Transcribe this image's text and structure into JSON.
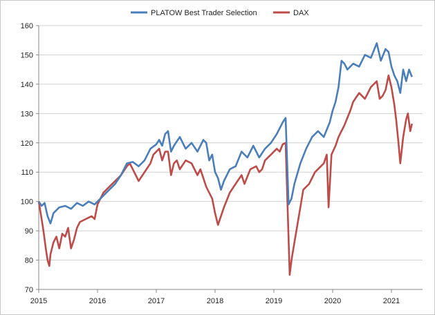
{
  "chart_data": {
    "type": "line",
    "title": "",
    "xlabel": "",
    "ylabel": "",
    "ylim": [
      70,
      160
    ],
    "xlim": [
      2015,
      2021.4
    ],
    "grid": true,
    "legend": "top",
    "y_ticks": [
      "70",
      "80",
      "90",
      "100",
      "110",
      "120",
      "130",
      "140",
      "150",
      "160"
    ],
    "x_ticks": [
      "2015",
      "2016",
      "2017",
      "2018",
      "2019",
      "2020",
      "2021"
    ],
    "series": [
      {
        "name": "PLATOW Best Trader Selection",
        "color": "#4a7ebb",
        "points": [
          [
            2015.0,
            100
          ],
          [
            2015.05,
            98.5
          ],
          [
            2015.1,
            99.5
          ],
          [
            2015.15,
            95
          ],
          [
            2015.2,
            92.5
          ],
          [
            2015.25,
            96
          ],
          [
            2015.35,
            98
          ],
          [
            2015.45,
            98.5
          ],
          [
            2015.55,
            97.5
          ],
          [
            2015.65,
            99.5
          ],
          [
            2015.75,
            98.5
          ],
          [
            2015.85,
            100
          ],
          [
            2015.95,
            99
          ],
          [
            2016.0,
            100
          ],
          [
            2016.1,
            102
          ],
          [
            2016.2,
            104
          ],
          [
            2016.3,
            106
          ],
          [
            2016.4,
            109
          ],
          [
            2016.5,
            113
          ],
          [
            2016.6,
            113.5
          ],
          [
            2016.7,
            112
          ],
          [
            2016.8,
            114
          ],
          [
            2016.9,
            118
          ],
          [
            2017.0,
            119.5
          ],
          [
            2017.05,
            121
          ],
          [
            2017.1,
            119
          ],
          [
            2017.15,
            123
          ],
          [
            2017.2,
            124
          ],
          [
            2017.25,
            117
          ],
          [
            2017.3,
            119
          ],
          [
            2017.4,
            122
          ],
          [
            2017.5,
            118
          ],
          [
            2017.6,
            120
          ],
          [
            2017.7,
            117
          ],
          [
            2017.8,
            121
          ],
          [
            2017.85,
            120
          ],
          [
            2017.9,
            114
          ],
          [
            2017.95,
            116
          ],
          [
            2018.0,
            110
          ],
          [
            2018.05,
            108
          ],
          [
            2018.1,
            104
          ],
          [
            2018.15,
            107
          ],
          [
            2018.25,
            111
          ],
          [
            2018.35,
            112
          ],
          [
            2018.45,
            117
          ],
          [
            2018.55,
            115
          ],
          [
            2018.65,
            119
          ],
          [
            2018.75,
            115
          ],
          [
            2018.85,
            118
          ],
          [
            2018.95,
            120
          ],
          [
            2019.05,
            123
          ],
          [
            2019.1,
            125
          ],
          [
            2019.15,
            127
          ],
          [
            2019.2,
            128.5
          ],
          [
            2019.25,
            99
          ],
          [
            2019.3,
            101
          ],
          [
            2019.35,
            106
          ],
          [
            2019.45,
            113
          ],
          [
            2019.55,
            118
          ],
          [
            2019.65,
            122
          ],
          [
            2019.75,
            124
          ],
          [
            2019.85,
            122
          ],
          [
            2019.95,
            127
          ],
          [
            2020.0,
            131
          ],
          [
            2020.05,
            134
          ],
          [
            2020.1,
            139
          ],
          [
            2020.15,
            148
          ],
          [
            2020.2,
            147
          ],
          [
            2020.25,
            145
          ],
          [
            2020.35,
            147
          ],
          [
            2020.45,
            146
          ],
          [
            2020.55,
            150
          ],
          [
            2020.65,
            149
          ],
          [
            2020.75,
            154
          ],
          [
            2020.82,
            148
          ],
          [
            2020.9,
            152
          ],
          [
            2020.95,
            151
          ],
          [
            2021.0,
            146
          ],
          [
            2021.05,
            143
          ],
          [
            2021.1,
            141
          ],
          [
            2021.15,
            137
          ],
          [
            2021.2,
            145
          ],
          [
            2021.25,
            141
          ],
          [
            2021.3,
            145
          ],
          [
            2021.35,
            142.5
          ]
        ]
      },
      {
        "name": "DAX",
        "color": "#be4b48",
        "points": [
          [
            2015.0,
            100
          ],
          [
            2015.05,
            94
          ],
          [
            2015.08,
            90
          ],
          [
            2015.12,
            84
          ],
          [
            2015.15,
            80
          ],
          [
            2015.18,
            78
          ],
          [
            2015.2,
            82
          ],
          [
            2015.25,
            86
          ],
          [
            2015.3,
            88
          ],
          [
            2015.35,
            84
          ],
          [
            2015.4,
            89
          ],
          [
            2015.45,
            88
          ],
          [
            2015.5,
            91
          ],
          [
            2015.55,
            84
          ],
          [
            2015.6,
            87
          ],
          [
            2015.65,
            91
          ],
          [
            2015.7,
            93
          ],
          [
            2015.8,
            94
          ],
          [
            2015.9,
            95
          ],
          [
            2015.95,
            94
          ],
          [
            2016.0,
            99
          ],
          [
            2016.1,
            103
          ],
          [
            2016.2,
            105
          ],
          [
            2016.3,
            107
          ],
          [
            2016.4,
            109
          ],
          [
            2016.5,
            112
          ],
          [
            2016.55,
            113
          ],
          [
            2016.6,
            111
          ],
          [
            2016.7,
            107
          ],
          [
            2016.8,
            110
          ],
          [
            2016.9,
            113
          ],
          [
            2016.95,
            116
          ],
          [
            2017.0,
            117
          ],
          [
            2017.05,
            118
          ],
          [
            2017.1,
            114
          ],
          [
            2017.15,
            117
          ],
          [
            2017.2,
            117
          ],
          [
            2017.25,
            109
          ],
          [
            2017.3,
            113
          ],
          [
            2017.35,
            114
          ],
          [
            2017.4,
            111
          ],
          [
            2017.5,
            114
          ],
          [
            2017.6,
            113
          ],
          [
            2017.7,
            109
          ],
          [
            2017.75,
            111
          ],
          [
            2017.8,
            108
          ],
          [
            2017.85,
            105
          ],
          [
            2017.9,
            103
          ],
          [
            2017.95,
            101
          ],
          [
            2018.0,
            96
          ],
          [
            2018.05,
            92
          ],
          [
            2018.1,
            95
          ],
          [
            2018.15,
            98
          ],
          [
            2018.25,
            103
          ],
          [
            2018.35,
            106
          ],
          [
            2018.45,
            109
          ],
          [
            2018.5,
            106
          ],
          [
            2018.6,
            111
          ],
          [
            2018.7,
            112
          ],
          [
            2018.75,
            110
          ],
          [
            2018.8,
            111
          ],
          [
            2018.85,
            114
          ],
          [
            2018.95,
            116
          ],
          [
            2019.05,
            118
          ],
          [
            2019.1,
            117
          ],
          [
            2019.15,
            119.5
          ],
          [
            2019.2,
            120
          ],
          [
            2019.23,
            100
          ],
          [
            2019.27,
            75
          ],
          [
            2019.3,
            80
          ],
          [
            2019.35,
            86
          ],
          [
            2019.4,
            92
          ],
          [
            2019.45,
            98
          ],
          [
            2019.5,
            104
          ],
          [
            2019.6,
            106
          ],
          [
            2019.7,
            110
          ],
          [
            2019.8,
            112
          ],
          [
            2019.85,
            113
          ],
          [
            2019.9,
            116
          ],
          [
            2019.93,
            98
          ],
          [
            2019.98,
            116
          ],
          [
            2020.05,
            119
          ],
          [
            2020.1,
            122
          ],
          [
            2020.2,
            126
          ],
          [
            2020.3,
            131
          ],
          [
            2020.35,
            134
          ],
          [
            2020.45,
            137
          ],
          [
            2020.55,
            135
          ],
          [
            2020.65,
            139
          ],
          [
            2020.75,
            141
          ],
          [
            2020.8,
            135
          ],
          [
            2020.85,
            136
          ],
          [
            2020.9,
            138
          ],
          [
            2020.95,
            143
          ],
          [
            2021.0,
            139
          ],
          [
            2021.05,
            133
          ],
          [
            2021.08,
            128
          ],
          [
            2021.12,
            120
          ],
          [
            2021.15,
            113
          ],
          [
            2021.2,
            122
          ],
          [
            2021.25,
            128
          ],
          [
            2021.28,
            130
          ],
          [
            2021.32,
            124
          ],
          [
            2021.35,
            126.5
          ]
        ]
      }
    ]
  }
}
